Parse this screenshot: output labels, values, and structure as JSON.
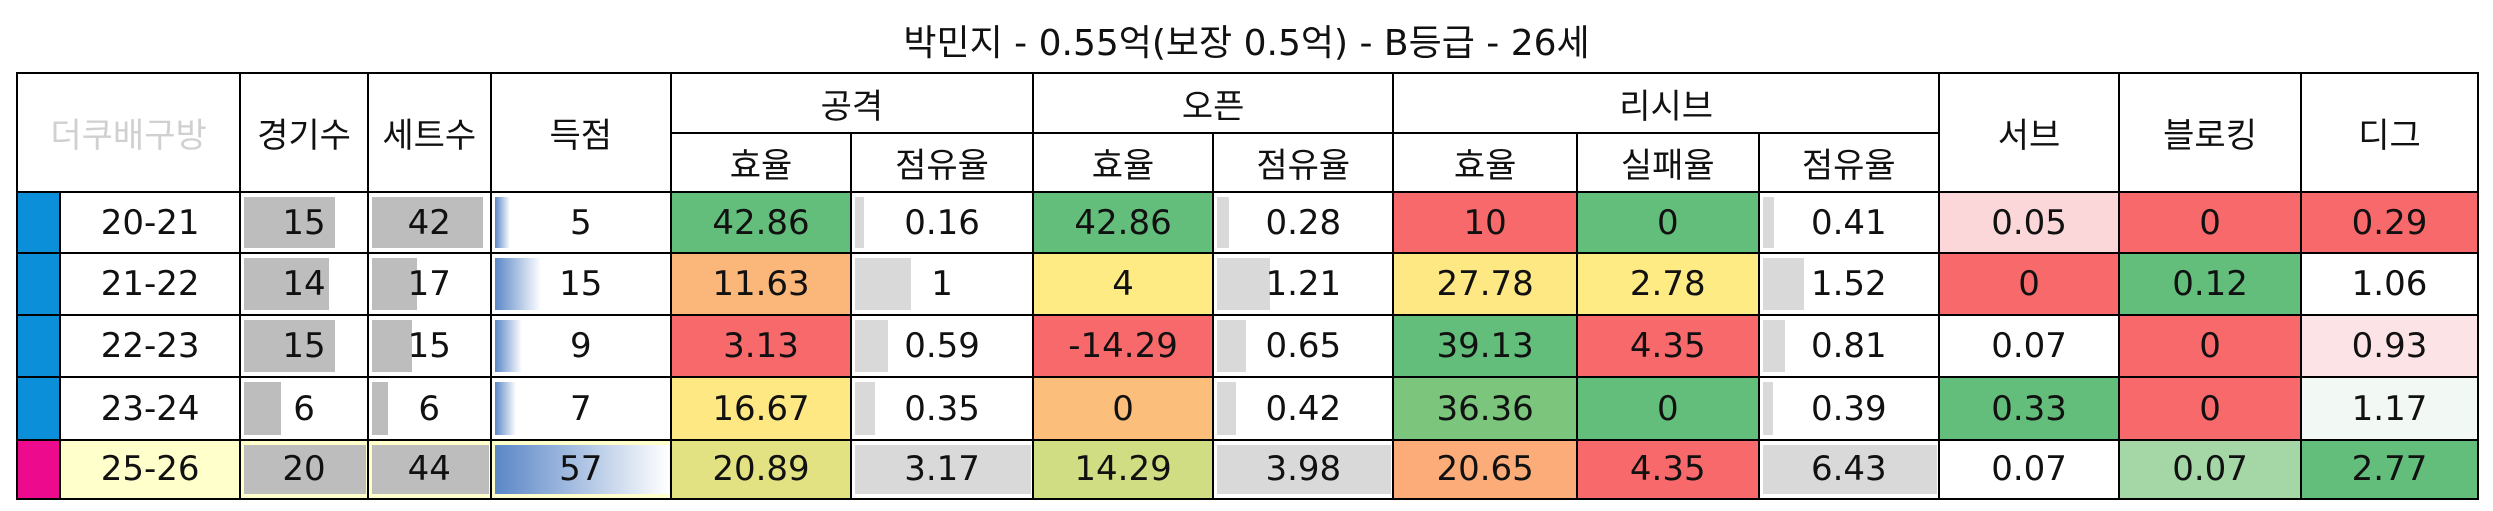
{
  "title": "박민지 - 0.55억(보장 0.5억) - B등급 - 26세",
  "header": {
    "corner": "더쿠배구방",
    "columns": [
      {
        "label": "경기수",
        "bar": "#bdbdbd"
      },
      {
        "label": "세트수",
        "bar": "#bdbdbd"
      },
      {
        "label": "득점",
        "bar": "#5b87c7"
      },
      {
        "group": "공격",
        "sub": [
          {
            "label": "효율"
          },
          {
            "label": "점유율",
            "bar": "#d9d9d9"
          }
        ]
      },
      {
        "group": "오픈",
        "sub": [
          {
            "label": "효율"
          },
          {
            "label": "점유율",
            "bar": "#d9d9d9"
          }
        ]
      },
      {
        "group": "리시브",
        "sub": [
          {
            "label": "효율"
          },
          {
            "label": "실패율"
          },
          {
            "label": "점유율",
            "bar": "#d9d9d9"
          }
        ]
      },
      {
        "label": "서브"
      },
      {
        "label": "블로킹"
      },
      {
        "label": "디그"
      }
    ]
  },
  "rows": [
    {
      "season": "20-21",
      "marker": "#0a8fd8",
      "values": [
        15,
        42,
        5,
        42.86,
        0.16,
        42.86,
        0.28,
        10,
        0,
        0.41,
        0.05,
        0,
        0.29
      ],
      "colors": [
        "#ffffff",
        "#ffffff",
        "#ffffff",
        "#63be7b",
        "#ffffff",
        "#63be7b",
        "#ffffff",
        "#f8696b",
        "#63be7b",
        "#ffffff",
        "#fbd7d9",
        "#f8696b",
        "#f8696b"
      ]
    },
    {
      "season": "21-22",
      "marker": "#0a8fd8",
      "values": [
        14,
        17,
        15,
        11.63,
        1,
        4,
        1.21,
        27.78,
        2.78,
        1.52,
        0,
        0.12,
        1.06
      ],
      "colors": [
        "#ffffff",
        "#ffffff",
        "#ffffff",
        "#fbb77a",
        "#ffffff",
        "#ffeb84",
        "#ffffff",
        "#fee883",
        "#ffeb84",
        "#ffffff",
        "#f8696b",
        "#63be7b",
        "#ffffff"
      ]
    },
    {
      "season": "22-23",
      "marker": "#0a8fd8",
      "values": [
        15,
        15,
        9,
        3.13,
        0.59,
        -14.29,
        0.65,
        39.13,
        4.35,
        0.81,
        0.07,
        0,
        0.93
      ],
      "colors": [
        "#ffffff",
        "#ffffff",
        "#ffffff",
        "#f8696b",
        "#ffffff",
        "#f8696b",
        "#ffffff",
        "#63be7b",
        "#f8696b",
        "#ffffff",
        "#ffffff",
        "#f8696b",
        "#fce4e6"
      ]
    },
    {
      "season": "23-24",
      "marker": "#0a8fd8",
      "values": [
        6,
        6,
        7,
        16.67,
        0.35,
        0,
        0.42,
        36.36,
        0,
        0.39,
        0.33,
        0,
        1.17
      ],
      "colors": [
        "#ffffff",
        "#ffffff",
        "#ffffff",
        "#fee883",
        "#ffffff",
        "#fcbf7b",
        "#ffffff",
        "#7cc57d",
        "#63be7b",
        "#ffffff",
        "#63be7b",
        "#f8696b",
        "#f2f8f3"
      ]
    },
    {
      "season": "25-26",
      "marker": "#ee0a8c",
      "season_bg": "#ffffcc",
      "values": [
        20,
        44,
        57,
        20.89,
        3.17,
        14.29,
        3.98,
        20.65,
        4.35,
        6.43,
        0.07,
        0.07,
        2.77
      ],
      "colors": [
        "#ffffcc",
        "#ffffcc",
        "#ffffcc",
        "#e3e282",
        "#ffffff",
        "#d0dd82",
        "#ffffff",
        "#fcac78",
        "#f8696b",
        "#ffffff",
        "#ffffff",
        "#a5d7a6",
        "#63be7b"
      ]
    }
  ]
}
